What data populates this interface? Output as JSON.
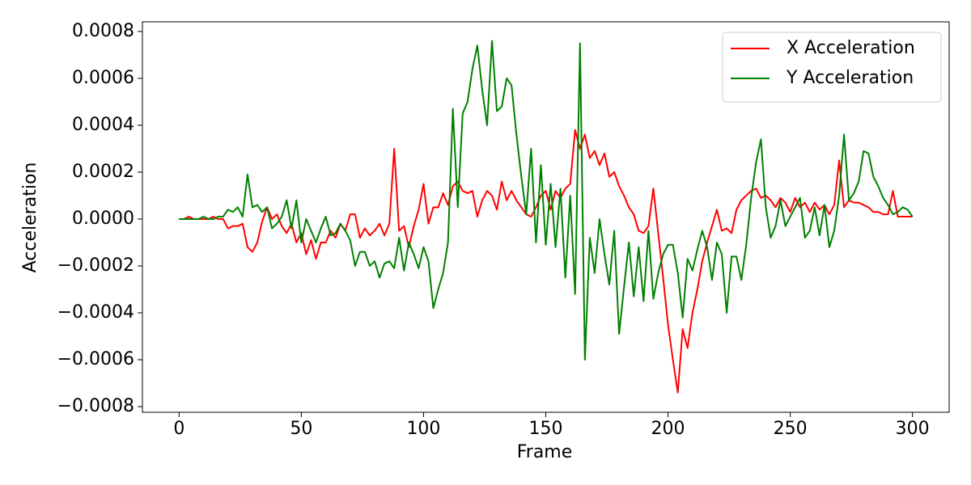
{
  "chart_data": {
    "type": "line",
    "xlabel": "Frame",
    "ylabel": "Acceleration",
    "x": [
      0,
      2,
      4,
      6,
      8,
      10,
      12,
      14,
      16,
      18,
      20,
      22,
      24,
      26,
      28,
      30,
      32,
      34,
      36,
      38,
      40,
      42,
      44,
      46,
      48,
      50,
      52,
      54,
      56,
      58,
      60,
      62,
      64,
      66,
      68,
      70,
      72,
      74,
      76,
      78,
      80,
      82,
      84,
      86,
      88,
      90,
      92,
      94,
      96,
      98,
      100,
      102,
      104,
      106,
      108,
      110,
      112,
      114,
      116,
      118,
      120,
      122,
      124,
      126,
      128,
      130,
      132,
      134,
      136,
      138,
      140,
      142,
      144,
      146,
      148,
      150,
      152,
      154,
      156,
      158,
      160,
      162,
      164,
      166,
      168,
      170,
      172,
      174,
      176,
      178,
      180,
      182,
      184,
      186,
      188,
      190,
      192,
      194,
      196,
      198,
      200,
      202,
      204,
      206,
      208,
      210,
      212,
      214,
      216,
      218,
      220,
      222,
      224,
      226,
      228,
      230,
      232,
      234,
      236,
      238,
      240,
      242,
      244,
      246,
      248,
      250,
      252,
      254,
      256,
      258,
      260,
      262,
      264,
      266,
      268,
      270,
      272,
      274,
      276,
      278,
      280,
      282,
      284,
      286,
      288,
      290,
      292,
      294,
      296,
      298,
      300
    ],
    "series": [
      {
        "name": "X Acceleration",
        "color": "#ff0000",
        "values": [
          0,
          0,
          1e-05,
          0,
          0,
          0,
          0,
          1e-05,
          0,
          0,
          -4e-05,
          -3e-05,
          -3e-05,
          -2e-05,
          -0.00012,
          -0.00014,
          -0.0001,
          -1e-05,
          5e-05,
          0,
          2e-05,
          -3e-05,
          -6e-05,
          -2e-05,
          -0.0001,
          -6e-05,
          -0.00015,
          -9e-05,
          -0.00017,
          -0.0001,
          -0.0001,
          -5e-05,
          -8e-05,
          -2e-05,
          -5e-05,
          2e-05,
          2e-05,
          -8e-05,
          -4e-05,
          -7e-05,
          -5e-05,
          -2e-05,
          -7e-05,
          -2e-05,
          0.0003,
          -5e-05,
          -3e-05,
          -0.00012,
          -3e-05,
          4e-05,
          0.00015,
          -2e-05,
          5e-05,
          5e-05,
          0.00011,
          6e-05,
          0.00014,
          0.00016,
          0.00012,
          0.00011,
          0.00012,
          1e-05,
          8e-05,
          0.00012,
          0.0001,
          4e-05,
          0.00016,
          8e-05,
          0.00012,
          8e-05,
          5e-05,
          2e-05,
          1e-05,
          5e-05,
          0.0001,
          0.00012,
          4e-05,
          0.00012,
          9e-05,
          0.00013,
          0.00015,
          0.00038,
          0.0003,
          0.00036,
          0.00026,
          0.00029,
          0.00023,
          0.00028,
          0.00018,
          0.0002,
          0.00014,
          0.0001,
          5e-05,
          2e-05,
          -5e-05,
          -6e-05,
          -3e-05,
          0.00013,
          -6e-05,
          -0.00025,
          -0.00045,
          -0.0006,
          -0.00074,
          -0.00047,
          -0.00055,
          -0.0004,
          -0.0003,
          -0.00018,
          -0.0001,
          -3e-05,
          4e-05,
          -5e-05,
          -4e-05,
          -6e-05,
          4e-05,
          8e-05,
          0.0001,
          0.00012,
          0.00013,
          9e-05,
          0.0001,
          8e-05,
          5e-05,
          9e-05,
          7e-05,
          3e-05,
          9e-05,
          5e-05,
          7e-05,
          3e-05,
          7e-05,
          4e-05,
          6e-05,
          2e-05,
          6e-05,
          0.00025,
          5e-05,
          8e-05,
          7e-05,
          7e-05,
          6e-05,
          5e-05,
          3e-05,
          3e-05,
          2e-05,
          2e-05,
          0.00012,
          1e-05,
          1e-05,
          1e-05,
          1e-05
        ]
      },
      {
        "name": "Y Acceleration",
        "color": "#008000",
        "values": [
          0,
          0,
          0,
          0,
          0,
          1e-05,
          0,
          0,
          1e-05,
          1e-05,
          4e-05,
          3e-05,
          5e-05,
          1e-05,
          0.00019,
          5e-05,
          6e-05,
          3e-05,
          5e-05,
          -4e-05,
          -2e-05,
          1e-05,
          8e-05,
          -4e-05,
          8e-05,
          -0.0001,
          0,
          -5e-05,
          -0.0001,
          -4e-05,
          1e-05,
          -7e-05,
          -6e-05,
          -2e-05,
          -5e-05,
          -9e-05,
          -0.0002,
          -0.00014,
          -0.00014,
          -0.0002,
          -0.00018,
          -0.00025,
          -0.00019,
          -0.00018,
          -0.00021,
          -8e-05,
          -0.00022,
          -0.0001,
          -0.00015,
          -0.00021,
          -0.00012,
          -0.00018,
          -0.00038,
          -0.0003,
          -0.00023,
          -0.0001,
          0.00047,
          5e-05,
          0.00045,
          0.0005,
          0.00064,
          0.00074,
          0.00055,
          0.0004,
          0.00076,
          0.00046,
          0.00048,
          0.0006,
          0.00057,
          0.00036,
          0.00018,
          2e-05,
          0.0003,
          -0.0001,
          0.00023,
          -0.00011,
          0.00015,
          -0.00012,
          0.00013,
          -0.00025,
          0.0001,
          -0.00032,
          0.00075,
          -0.0006,
          -8e-05,
          -0.00023,
          0,
          -0.00015,
          -0.00028,
          -5e-05,
          -0.00049,
          -0.00029,
          -0.0001,
          -0.00033,
          -0.00012,
          -0.00035,
          -5e-05,
          -0.00034,
          -0.00023,
          -0.00015,
          -0.00011,
          -0.00011,
          -0.00023,
          -0.00042,
          -0.00017,
          -0.00022,
          -0.00013,
          -5e-05,
          -0.00012,
          -0.00026,
          -0.0001,
          -0.00015,
          -0.0004,
          -0.00016,
          -0.00016,
          -0.00026,
          -0.00011,
          9e-05,
          0.00024,
          0.00034,
          5e-05,
          -8e-05,
          -3e-05,
          8e-05,
          -3e-05,
          1e-05,
          5e-05,
          9e-05,
          -8e-05,
          -5e-05,
          5e-05,
          -7e-05,
          6e-05,
          -0.00012,
          -5e-05,
          0.0001,
          0.00036,
          8e-05,
          0.00011,
          0.00016,
          0.00029,
          0.00028,
          0.00018,
          0.00014,
          9e-05,
          6e-05,
          2e-05,
          3e-05,
          5e-05,
          4e-05,
          1e-05
        ]
      }
    ],
    "xlim": [
      -15,
      315
    ],
    "xticks": [
      0,
      50,
      100,
      150,
      200,
      250,
      300
    ],
    "ylim": [
      -0.000824,
      0.000841
    ],
    "yticks": [
      {
        "value": -0.0008,
        "label": "−0.0008"
      },
      {
        "value": -0.0006,
        "label": "−0.0006"
      },
      {
        "value": -0.0004,
        "label": "−0.0004"
      },
      {
        "value": -0.0002,
        "label": "−0.0002"
      },
      {
        "value": 0,
        "label": "0.0000"
      },
      0.0002,
      0.0004,
      0.0006,
      0.0008
    ],
    "grid": false,
    "legend": "upper right"
  }
}
